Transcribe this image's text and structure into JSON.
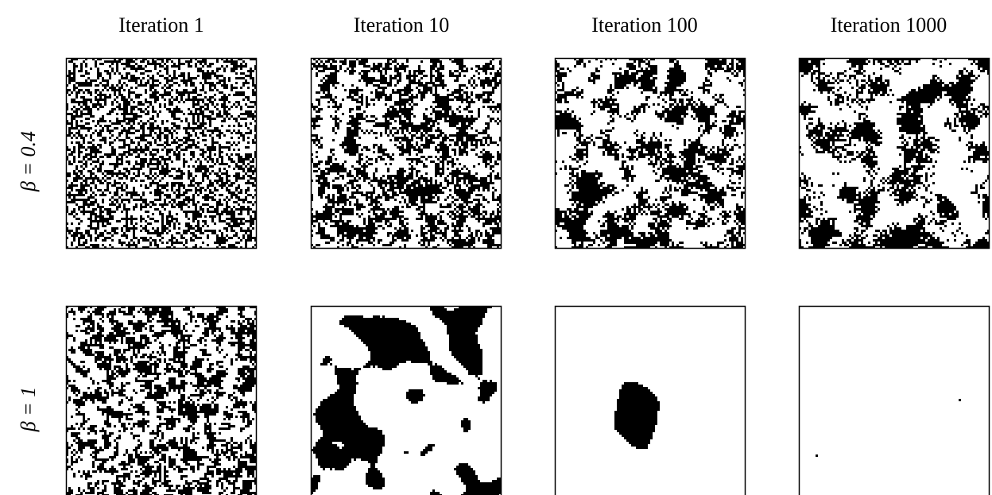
{
  "columns": [
    "Iteration 1",
    "Iteration 10",
    "Iteration 100",
    "Iteration 1000"
  ],
  "rows": [
    "β = 0.4",
    "β = 1"
  ]
}
